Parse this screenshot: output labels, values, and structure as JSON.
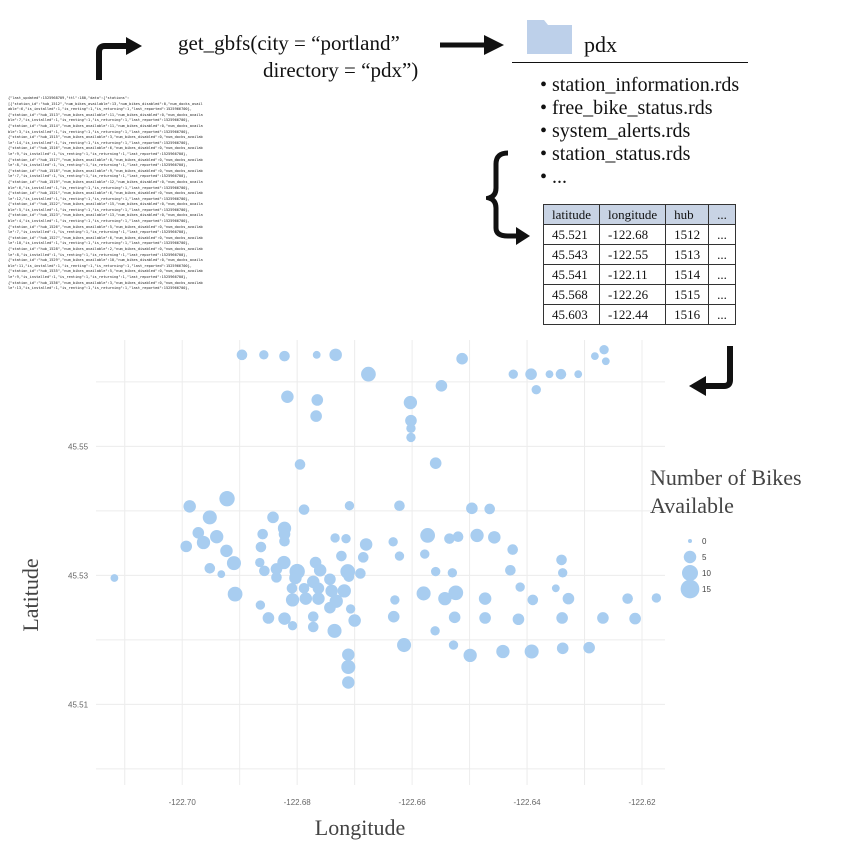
{
  "code": {
    "line1": "get_gbfs(city = “portland”",
    "line2": "directory = “pdx”)"
  },
  "folder": {
    "name": "pdx",
    "icon": "folder-icon",
    "files": [
      "station_information.rds",
      "free_bike_status.rds",
      "system_alerts.rds",
      "station_status.rds",
      "..."
    ]
  },
  "json_text": "{\"last_updated\":1525968709,\"ttl\":180,\"data\":{\"stations\":\n[{\"station_id\":\"hub_1512\",\"num_bikes_available\":13,\"num_bikes_disabled\":0,\"num_docks_avail\nable\":6,\"is_installed\":1,\"is_renting\":1,\"is_returning\":1,\"last_reported\":1525966700},\n{\"station_id\":\"hub_1513\",\"num_bikes_available\":11,\"num_bikes_disabled\":0,\"num_docks_availa\nble\":7,\"is_installed\":1,\"is_renting\":1,\"is_returning\":1,\"last_reported\":1525966700},\n{\"station_id\":\"hub_1514\",\"num_bikes_available\":11,\"num_bikes_disabled\":0,\"num_docks_availa\nble\":3,\"is_installed\":1,\"is_renting\":1,\"is_returning\":1,\"last_reported\":1525966700},\n{\"station_id\":\"hub_1515\",\"num_bikes_available\":3,\"num_bikes_disabled\":0,\"num_docks_availab\nle\":14,\"is_installed\":1,\"is_renting\":1,\"is_returning\":1,\"last_reported\":1525966700},\n{\"station_id\":\"hub_1516\",\"num_bikes_available\":6,\"num_bikes_disabled\":0,\"num_docks_availab\nle\":9,\"is_installed\":1,\"is_renting\":1,\"is_returning\":1,\"last_reported\":1525966700},\n{\"station_id\":\"hub_1517\",\"num_bikes_available\":0,\"num_bikes_disabled\":0,\"num_docks_availab\nle\":8,\"is_installed\":1,\"is_renting\":1,\"is_returning\":1,\"last_reported\":1525966700},\n{\"station_id\":\"hub_1518\",\"num_bikes_available\":9,\"num_bikes_disabled\":0,\"num_docks_availab\nle\":7,\"is_installed\":1,\"is_renting\":1,\"is_returning\":1,\"last_reported\":1525966700},\n{\"station_id\":\"hub_1519\",\"num_bikes_available\":12,\"num_bikes_disabled\":0,\"num_docks_availa\nble\":6,\"is_installed\":1,\"is_renting\":1,\"is_returning\":1,\"last_reported\":1525966700},\n{\"station_id\":\"hub_1521\",\"num_bikes_available\":6,\"num_bikes_disabled\":0,\"num_docks_availab\nle\":12,\"is_installed\":1,\"is_renting\":1,\"is_returning\":1,\"last_reported\":1525966700},\n{\"station_id\":\"hub_1522\",\"num_bikes_available\":15,\"num_bikes_disabled\":0,\"num_docks_availa\nble\":5,\"is_installed\":1,\"is_renting\":1,\"is_returning\":1,\"last_reported\":1525966700},\n{\"station_id\":\"hub_1523\",\"num_bikes_available\":13,\"num_bikes_disabled\":0,\"num_docks_availa\nble\":4,\"is_installed\":1,\"is_renting\":1,\"is_returning\":1,\"last_reported\":1525966700},\n{\"station_id\":\"hub_1526\",\"num_bikes_available\":5,\"num_bikes_disabled\":0,\"num_docks_availab\nle\":7,\"is_installed\":1,\"is_renting\":1,\"is_returning\":1,\"last_reported\":1525966700},\n{\"station_id\":\"hub_1527\",\"num_bikes_available\":6,\"num_bikes_disabled\":0,\"num_docks_availab\nle\":10,\"is_installed\":1,\"is_renting\":1,\"is_returning\":1,\"last_reported\":1525966700},\n{\"station_id\":\"hub_1528\",\"num_bikes_available\":2,\"num_bikes_disabled\":0,\"num_docks_availab\nle\":8,\"is_installed\":1,\"is_renting\":1,\"is_returning\":1,\"last_reported\":1525966700},\n{\"station_id\":\"hub_1529\",\"num_bikes_available\":10,\"num_bikes_disabled\":0,\"num_docks_availa\nble\":11,\"is_installed\":1,\"is_renting\":1,\"is_returning\":1,\"last_reported\":1525966700},\n{\"station_id\":\"hub_1535\",\"num_bikes_available\":5,\"num_bikes_disabled\":0,\"num_docks_availab\nle\":9,\"is_installed\":1,\"is_renting\":1,\"is_returning\":1,\"last_reported\":1525966700},\n{\"station_id\":\"hub_1536\",\"num_bikes_available\":3,\"num_bikes_disabled\":0,\"num_docks_availab\nle\":13,\"is_installed\":1,\"is_renting\":1,\"is_returning\":1,\"last_reported\":1525966700},",
  "table": {
    "headers": [
      "latitude",
      "longitude",
      "hub",
      "..."
    ],
    "rows": [
      [
        "45.521",
        "-122.68",
        "1512",
        "..."
      ],
      [
        "45.543",
        "-122.55",
        "1513",
        "..."
      ],
      [
        "45.541",
        "-122.11",
        "1514",
        "..."
      ],
      [
        "45.568",
        "-122.26",
        "1515",
        "..."
      ],
      [
        "45.603",
        "-122.44",
        "1516",
        "..."
      ]
    ]
  },
  "colors": {
    "point": "#a8cdf0",
    "header_fill": "#c8d3e4",
    "folder": "#bdd0ea"
  },
  "chart_data": {
    "type": "scatter",
    "xlabel": "Longitude",
    "ylabel": "Latitude",
    "xlim": [
      -122.715,
      -122.616
    ],
    "ylim": [
      45.4975,
      45.5665
    ],
    "xticks": [
      -122.7,
      -122.68,
      -122.66,
      -122.64,
      -122.62
    ],
    "xtick_labels": [
      "-122.70",
      "-122.68",
      "-122.66",
      "-122.64",
      "-122.62"
    ],
    "yticks": [
      45.51,
      45.53,
      45.55
    ],
    "ytick_labels": [
      "45.51",
      "45.53",
      "45.55"
    ],
    "grid": true,
    "legend": {
      "title": "Number of Bikes Available",
      "placement": "right",
      "sizes": [
        0,
        5,
        10,
        15
      ],
      "labels": [
        "0",
        "5",
        "10",
        "15"
      ]
    },
    "points": [
      {
        "lon": -122.6896,
        "lat": 45.5642,
        "bikes": 3
      },
      {
        "lon": -122.6858,
        "lat": 45.5642,
        "bikes": 2
      },
      {
        "lon": -122.6822,
        "lat": 45.564,
        "bikes": 3
      },
      {
        "lon": -122.6766,
        "lat": 45.5642,
        "bikes": 1
      },
      {
        "lon": -122.6733,
        "lat": 45.5642,
        "bikes": 5
      },
      {
        "lon": -122.6676,
        "lat": 45.5612,
        "bikes": 8
      },
      {
        "lon": -122.6513,
        "lat": 45.5636,
        "bikes": 4
      },
      {
        "lon": -122.6424,
        "lat": 45.5612,
        "bikes": 2
      },
      {
        "lon": -122.6393,
        "lat": 45.5612,
        "bikes": 4
      },
      {
        "lon": -122.6361,
        "lat": 45.5612,
        "bikes": 1
      },
      {
        "lon": -122.6341,
        "lat": 45.5612,
        "bikes": 3
      },
      {
        "lon": -122.6311,
        "lat": 45.5612,
        "bikes": 1
      },
      {
        "lon": -122.6282,
        "lat": 45.564,
        "bikes": 1
      },
      {
        "lon": -122.6266,
        "lat": 45.565,
        "bikes": 2
      },
      {
        "lon": -122.6263,
        "lat": 45.5632,
        "bikes": 1
      },
      {
        "lon": -122.6549,
        "lat": 45.5594,
        "bikes": 4
      },
      {
        "lon": -122.6384,
        "lat": 45.5588,
        "bikes": 2
      },
      {
        "lon": -122.6817,
        "lat": 45.5577,
        "bikes": 5
      },
      {
        "lon": -122.6765,
        "lat": 45.5572,
        "bikes": 4
      },
      {
        "lon": -122.6603,
        "lat": 45.5568,
        "bikes": 6
      },
      {
        "lon": -122.6767,
        "lat": 45.5547,
        "bikes": 4
      },
      {
        "lon": -122.6602,
        "lat": 45.554,
        "bikes": 4
      },
      {
        "lon": -122.6602,
        "lat": 45.5528,
        "bikes": 2
      },
      {
        "lon": -122.6602,
        "lat": 45.5514,
        "bikes": 2
      },
      {
        "lon": -122.6559,
        "lat": 45.5474,
        "bikes": 4
      },
      {
        "lon": -122.6795,
        "lat": 45.5472,
        "bikes": 3
      },
      {
        "lon": -122.6987,
        "lat": 45.5407,
        "bikes": 5
      },
      {
        "lon": -122.6922,
        "lat": 45.5419,
        "bikes": 9
      },
      {
        "lon": -122.6952,
        "lat": 45.539,
        "bikes": 7
      },
      {
        "lon": -122.6842,
        "lat": 45.539,
        "bikes": 4
      },
      {
        "lon": -122.6822,
        "lat": 45.5373,
        "bikes": 6
      },
      {
        "lon": -122.6788,
        "lat": 45.5402,
        "bikes": 3
      },
      {
        "lon": -122.6709,
        "lat": 45.5408,
        "bikes": 2
      },
      {
        "lon": -122.6622,
        "lat": 45.5408,
        "bikes": 3
      },
      {
        "lon": -122.6496,
        "lat": 45.5404,
        "bikes": 4
      },
      {
        "lon": -122.6465,
        "lat": 45.5403,
        "bikes": 3
      },
      {
        "lon": -122.6972,
        "lat": 45.5366,
        "bikes": 4
      },
      {
        "lon": -122.694,
        "lat": 45.536,
        "bikes": 6
      },
      {
        "lon": -122.686,
        "lat": 45.5364,
        "bikes": 3
      },
      {
        "lon": -122.6822,
        "lat": 45.5364,
        "bikes": 4
      },
      {
        "lon": -122.6715,
        "lat": 45.5357,
        "bikes": 2
      },
      {
        "lon": -122.6633,
        "lat": 45.5352,
        "bikes": 2
      },
      {
        "lon": -122.6573,
        "lat": 45.5362,
        "bikes": 8
      },
      {
        "lon": -122.6535,
        "lat": 45.5357,
        "bikes": 3
      },
      {
        "lon": -122.652,
        "lat": 45.536,
        "bikes": 3
      },
      {
        "lon": -122.6487,
        "lat": 45.5362,
        "bikes": 6
      },
      {
        "lon": -122.6457,
        "lat": 45.5359,
        "bikes": 5
      },
      {
        "lon": -122.6425,
        "lat": 45.534,
        "bikes": 3
      },
      {
        "lon": -122.6993,
        "lat": 45.5345,
        "bikes": 4
      },
      {
        "lon": -122.6963,
        "lat": 45.5351,
        "bikes": 6
      },
      {
        "lon": -122.6923,
        "lat": 45.5338,
        "bikes": 5
      },
      {
        "lon": -122.6863,
        "lat": 45.5344,
        "bikes": 3
      },
      {
        "lon": -122.6822,
        "lat": 45.5353,
        "bikes": 3
      },
      {
        "lon": -122.6734,
        "lat": 45.5358,
        "bikes": 2
      },
      {
        "lon": -122.668,
        "lat": 45.5348,
        "bikes": 5
      },
      {
        "lon": -122.691,
        "lat": 45.5319,
        "bikes": 7
      },
      {
        "lon": -122.6865,
        "lat": 45.532,
        "bikes": 2
      },
      {
        "lon": -122.6823,
        "lat": 45.532,
        "bikes": 6
      },
      {
        "lon": -122.6768,
        "lat": 45.532,
        "bikes": 4
      },
      {
        "lon": -122.6723,
        "lat": 45.533,
        "bikes": 3
      },
      {
        "lon": -122.6685,
        "lat": 45.5328,
        "bikes": 3
      },
      {
        "lon": -122.6622,
        "lat": 45.533,
        "bikes": 2
      },
      {
        "lon": -122.6578,
        "lat": 45.5333,
        "bikes": 2
      },
      {
        "lon": -122.634,
        "lat": 45.5324,
        "bikes": 3
      },
      {
        "lon": -122.6952,
        "lat": 45.5311,
        "bikes": 3
      },
      {
        "lon": -122.6932,
        "lat": 45.5302,
        "bikes": 1
      },
      {
        "lon": -122.6857,
        "lat": 45.5307,
        "bikes": 3
      },
      {
        "lon": -122.6836,
        "lat": 45.531,
        "bikes": 4
      },
      {
        "lon": -122.68,
        "lat": 45.5306,
        "bikes": 9
      },
      {
        "lon": -122.676,
        "lat": 45.5308,
        "bikes": 5
      },
      {
        "lon": -122.6712,
        "lat": 45.5306,
        "bikes": 8
      },
      {
        "lon": -122.669,
        "lat": 45.5303,
        "bikes": 3
      },
      {
        "lon": -122.6559,
        "lat": 45.5306,
        "bikes": 2
      },
      {
        "lon": -122.653,
        "lat": 45.5304,
        "bikes": 2
      },
      {
        "lon": -122.6429,
        "lat": 45.5308,
        "bikes": 3
      },
      {
        "lon": -122.6338,
        "lat": 45.5304,
        "bikes": 2
      },
      {
        "lon": -122.7118,
        "lat": 45.5296,
        "bikes": 1
      },
      {
        "lon": -122.6836,
        "lat": 45.5297,
        "bikes": 3
      },
      {
        "lon": -122.6803,
        "lat": 45.5296,
        "bikes": 5
      },
      {
        "lon": -122.6772,
        "lat": 45.529,
        "bikes": 5
      },
      {
        "lon": -122.6743,
        "lat": 45.5294,
        "bikes": 4
      },
      {
        "lon": -122.671,
        "lat": 45.5298,
        "bikes": 3
      },
      {
        "lon": -122.6809,
        "lat": 45.528,
        "bikes": 3
      },
      {
        "lon": -122.6788,
        "lat": 45.528,
        "bikes": 3
      },
      {
        "lon": -122.6763,
        "lat": 45.528,
        "bikes": 4
      },
      {
        "lon": -122.674,
        "lat": 45.5276,
        "bikes": 5
      },
      {
        "lon": -122.6718,
        "lat": 45.5276,
        "bikes": 6
      },
      {
        "lon": -122.6908,
        "lat": 45.5271,
        "bikes": 8
      },
      {
        "lon": -122.658,
        "lat": 45.5272,
        "bikes": 7
      },
      {
        "lon": -122.6412,
        "lat": 45.5282,
        "bikes": 2
      },
      {
        "lon": -122.635,
        "lat": 45.528,
        "bikes": 1
      },
      {
        "lon": -122.6524,
        "lat": 45.5273,
        "bikes": 8
      },
      {
        "lon": -122.6808,
        "lat": 45.5262,
        "bikes": 6
      },
      {
        "lon": -122.6785,
        "lat": 45.5264,
        "bikes": 5
      },
      {
        "lon": -122.6763,
        "lat": 45.5264,
        "bikes": 5
      },
      {
        "lon": -122.6732,
        "lat": 45.526,
        "bikes": 6
      },
      {
        "lon": -122.663,
        "lat": 45.5262,
        "bikes": 2
      },
      {
        "lon": -122.6543,
        "lat": 45.5264,
        "bikes": 6
      },
      {
        "lon": -122.6473,
        "lat": 45.5264,
        "bikes": 5
      },
      {
        "lon": -122.639,
        "lat": 45.5262,
        "bikes": 3
      },
      {
        "lon": -122.6328,
        "lat": 45.5264,
        "bikes": 4
      },
      {
        "lon": -122.6225,
        "lat": 45.5264,
        "bikes": 3
      },
      {
        "lon": -122.6175,
        "lat": 45.5265,
        "bikes": 2
      },
      {
        "lon": -122.6864,
        "lat": 45.5254,
        "bikes": 2
      },
      {
        "lon": -122.6743,
        "lat": 45.525,
        "bikes": 4
      },
      {
        "lon": -122.6707,
        "lat": 45.5248,
        "bikes": 2
      },
      {
        "lon": -122.685,
        "lat": 45.5234,
        "bikes": 4
      },
      {
        "lon": -122.6822,
        "lat": 45.5233,
        "bikes": 5
      },
      {
        "lon": -122.6772,
        "lat": 45.5236,
        "bikes": 3
      },
      {
        "lon": -122.67,
        "lat": 45.523,
        "bikes": 5
      },
      {
        "lon": -122.6632,
        "lat": 45.5236,
        "bikes": 4
      },
      {
        "lon": -122.6526,
        "lat": 45.5235,
        "bikes": 4
      },
      {
        "lon": -122.6473,
        "lat": 45.5234,
        "bikes": 4
      },
      {
        "lon": -122.6415,
        "lat": 45.5232,
        "bikes": 4
      },
      {
        "lon": -122.6339,
        "lat": 45.5234,
        "bikes": 4
      },
      {
        "lon": -122.6268,
        "lat": 45.5234,
        "bikes": 4
      },
      {
        "lon": -122.6212,
        "lat": 45.5233,
        "bikes": 4
      },
      {
        "lon": -122.6808,
        "lat": 45.5222,
        "bikes": 2
      },
      {
        "lon": -122.6772,
        "lat": 45.522,
        "bikes": 3
      },
      {
        "lon": -122.6735,
        "lat": 45.5214,
        "bikes": 7
      },
      {
        "lon": -122.656,
        "lat": 45.5214,
        "bikes": 2
      },
      {
        "lon": -122.6614,
        "lat": 45.5192,
        "bikes": 7
      },
      {
        "lon": -122.6528,
        "lat": 45.5192,
        "bikes": 2
      },
      {
        "lon": -122.6499,
        "lat": 45.5176,
        "bikes": 6
      },
      {
        "lon": -122.6442,
        "lat": 45.5182,
        "bikes": 6
      },
      {
        "lon": -122.6392,
        "lat": 45.5182,
        "bikes": 7
      },
      {
        "lon": -122.6338,
        "lat": 45.5187,
        "bikes": 4
      },
      {
        "lon": -122.6292,
        "lat": 45.5188,
        "bikes": 4
      },
      {
        "lon": -122.6711,
        "lat": 45.5177,
        "bikes": 5
      },
      {
        "lon": -122.6711,
        "lat": 45.5158,
        "bikes": 7
      },
      {
        "lon": -122.6711,
        "lat": 45.5134,
        "bikes": 5
      }
    ]
  }
}
